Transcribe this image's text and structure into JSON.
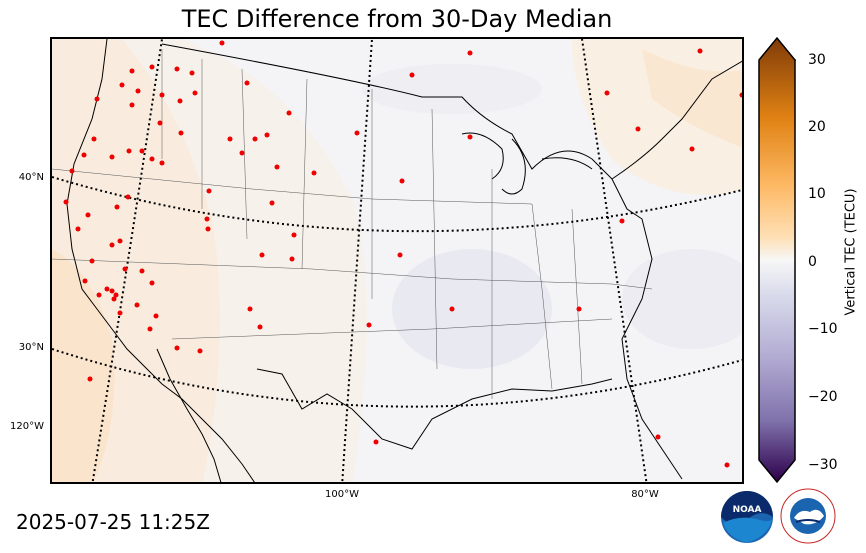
{
  "title": "TEC Difference from 30-Day Median",
  "timestamp": "2025-07-25 11:25Z",
  "colorbar": {
    "label": "Vertical TEC (TECU)",
    "ticks": [
      "30",
      "20",
      "10",
      "0",
      "−10",
      "−20",
      "−30"
    ],
    "min": -30,
    "max": 30
  },
  "axes": {
    "lat_labels": [
      "40°N",
      "30°N",
      "120°W"
    ],
    "lon_labels": [
      "100°W",
      "80°W"
    ]
  },
  "logos": {
    "noaa": "NOAA",
    "nws": "NATIONAL WEATHER SERVICE"
  },
  "colors": {
    "positive_max": "#7f3b08",
    "neutral": "#f7f7f7",
    "negative_max": "#2d004b",
    "station_dot": "#ee0000"
  }
}
